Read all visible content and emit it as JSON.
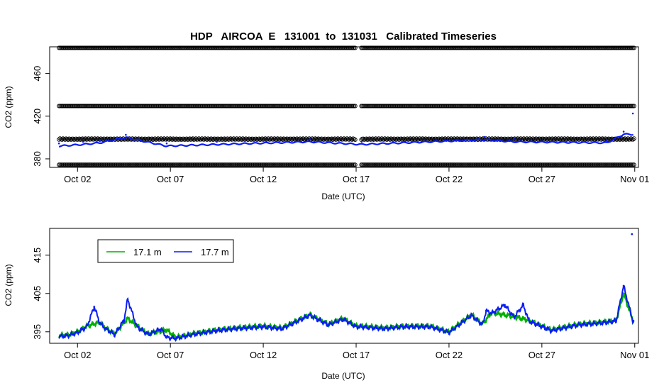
{
  "chart_data": [
    {
      "type": "scatter",
      "title": "HDP   AIRCOA  E   131001  to  131031   Calibrated Timeseries",
      "xlabel": "Date (UTC)",
      "ylabel": "CO2 (ppm)",
      "x_ticks": [
        "Oct 02",
        "Oct 07",
        "Oct 12",
        "Oct 17",
        "Oct 22",
        "Oct 27",
        "Nov 01"
      ],
      "x_tick_days": [
        2,
        7,
        12,
        17,
        22,
        27,
        32
      ],
      "y_ticks": [
        "380",
        "420",
        "460"
      ],
      "y_tick_values": [
        380,
        420,
        460
      ],
      "xlim": [
        0.5,
        32.2
      ],
      "ylim": [
        372,
        485
      ],
      "reference_levels": {
        "color": "#000000",
        "marker": "open-circle",
        "levels": [
          374.5,
          398.5,
          429.5,
          484
        ],
        "gaps": [
          [
            16.98,
            17.25
          ]
        ]
      },
      "series_color": "#0a1cf5",
      "series_points": [
        [
          1.0,
          394.5
        ],
        [
          2.3,
          396
        ],
        [
          3.2,
          397.5
        ],
        [
          4.6,
          402.5
        ],
        [
          6.8,
          394.5
        ],
        [
          9.5,
          396
        ],
        [
          14.5,
          398.5
        ],
        [
          17.3,
          396
        ],
        [
          23.9,
          400.5
        ],
        [
          25.5,
          398.5
        ],
        [
          30.5,
          397.5
        ],
        [
          31.4,
          405.5
        ],
        [
          31.9,
          422.5
        ]
      ],
      "grid": false
    },
    {
      "type": "line",
      "xlabel": "Date (UTC)",
      "ylabel": "CO2 (ppm)",
      "x_ticks": [
        "Oct 02",
        "Oct 07",
        "Oct 12",
        "Oct 17",
        "Oct 22",
        "Oct 27",
        "Nov 01"
      ],
      "x_tick_days": [
        2,
        7,
        12,
        17,
        22,
        27,
        32
      ],
      "y_ticks": [
        "395",
        "405",
        "415"
      ],
      "y_tick_values": [
        395,
        405,
        415
      ],
      "xlim": [
        0.5,
        32.2
      ],
      "ylim": [
        392,
        422
      ],
      "legend": {
        "placement": "top-left"
      },
      "series": [
        {
          "name": "17.1 m",
          "color": "#00b000",
          "points": [
            [
              1.0,
              394
            ],
            [
              1.5,
              394.2
            ],
            [
              2.0,
              395
            ],
            [
              2.5,
              396.5
            ],
            [
              3.2,
              397.5
            ],
            [
              3.5,
              396
            ],
            [
              4.0,
              394.5
            ],
            [
              4.7,
              398.5
            ],
            [
              5.2,
              396.5
            ],
            [
              5.8,
              394.5
            ],
            [
              6.8,
              395.5
            ],
            [
              7.3,
              393.5
            ],
            [
              8.2,
              394.5
            ],
            [
              9.5,
              395.5
            ],
            [
              10.5,
              396
            ],
            [
              12.0,
              396.5
            ],
            [
              13.0,
              396
            ],
            [
              14.5,
              399.5
            ],
            [
              15.5,
              397
            ],
            [
              16.3,
              398.5
            ],
            [
              17.0,
              396.5
            ],
            [
              17.3,
              396.5
            ],
            [
              18.5,
              396
            ],
            [
              19.5,
              396.5
            ],
            [
              21.0,
              396.5
            ],
            [
              22.0,
              395
            ],
            [
              23.2,
              399.5
            ],
            [
              23.8,
              397
            ],
            [
              24.3,
              400
            ],
            [
              25.5,
              399
            ],
            [
              26.3,
              398
            ],
            [
              27.5,
              395.5
            ],
            [
              29.0,
              397
            ],
            [
              30.2,
              397.5
            ],
            [
              31.0,
              398
            ],
            [
              31.4,
              405
            ],
            [
              31.9,
              398
            ]
          ]
        },
        {
          "name": "17.7 m",
          "color": "#0a1cf5",
          "points": [
            [
              1.0,
              393.8
            ],
            [
              1.5,
              394
            ],
            [
              2.0,
              394.8
            ],
            [
              2.5,
              396.3
            ],
            [
              2.9,
              401.5
            ],
            [
              3.2,
              397.3
            ],
            [
              3.5,
              395.8
            ],
            [
              4.0,
              394.3
            ],
            [
              4.5,
              398
            ],
            [
              4.7,
              403.5
            ],
            [
              5.2,
              396.3
            ],
            [
              5.8,
              394.3
            ],
            [
              6.5,
              395.8
            ],
            [
              6.8,
              393.5
            ],
            [
              7.3,
              393.3
            ],
            [
              8.2,
              394.3
            ],
            [
              9.5,
              395.3
            ],
            [
              10.5,
              395.8
            ],
            [
              12.0,
              396.3
            ],
            [
              13.0,
              395.8
            ],
            [
              14.5,
              399.3
            ],
            [
              15.5,
              396.8
            ],
            [
              16.3,
              398.3
            ],
            [
              17.0,
              396.3
            ],
            [
              17.3,
              396.3
            ],
            [
              18.5,
              395.8
            ],
            [
              19.5,
              396.3
            ],
            [
              21.0,
              396.3
            ],
            [
              22.0,
              394.8
            ],
            [
              23.2,
              399.3
            ],
            [
              23.8,
              396.8
            ],
            [
              24.0,
              400.5
            ],
            [
              24.3,
              399.8
            ],
            [
              25.0,
              402
            ],
            [
              25.5,
              398.8
            ],
            [
              26.0,
              402
            ],
            [
              26.3,
              397.8
            ],
            [
              27.5,
              395.3
            ],
            [
              29.0,
              396.8
            ],
            [
              30.2,
              397.3
            ],
            [
              31.0,
              397.8
            ],
            [
              31.4,
              407
            ],
            [
              31.9,
              397.8
            ],
            [
              31.85,
              420.5
            ]
          ]
        }
      ],
      "grid": false
    }
  ]
}
